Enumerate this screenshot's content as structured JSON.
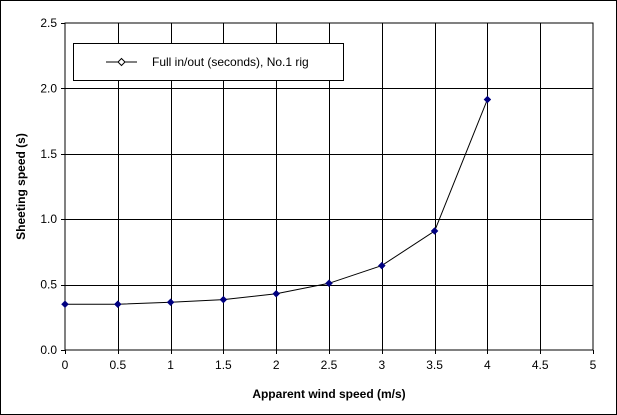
{
  "chart_data": {
    "type": "line",
    "title": "",
    "xlabel": "Apparent wind speed (m/s)",
    "ylabel": "Sheeting speed (s)",
    "xlim": [
      0,
      5
    ],
    "ylim": [
      0,
      2.5
    ],
    "x_ticks": [
      0,
      0.5,
      1,
      1.5,
      2,
      2.5,
      3,
      3.5,
      4,
      4.5,
      5
    ],
    "x_tick_labels": [
      "0",
      "0.5",
      "1",
      "1.5",
      "2",
      "2.5",
      "3",
      "3.5",
      "4",
      "4.5",
      "5"
    ],
    "y_ticks": [
      0,
      0.5,
      1.0,
      1.5,
      2.0,
      2.5
    ],
    "y_tick_labels": [
      "0.0",
      "0.5",
      "1.0",
      "1.5",
      "2.0",
      "2.5"
    ],
    "grid": true,
    "legend_position": "top-left",
    "series": [
      {
        "name": "Full in/out (seconds), No.1 rig",
        "color": "#000080",
        "marker": "diamond",
        "x": [
          0,
          0.5,
          1,
          1.5,
          2,
          2.5,
          3,
          3.5,
          4
        ],
        "y": [
          0.35,
          0.35,
          0.365,
          0.385,
          0.43,
          0.51,
          0.645,
          0.91,
          1.915
        ]
      }
    ]
  }
}
